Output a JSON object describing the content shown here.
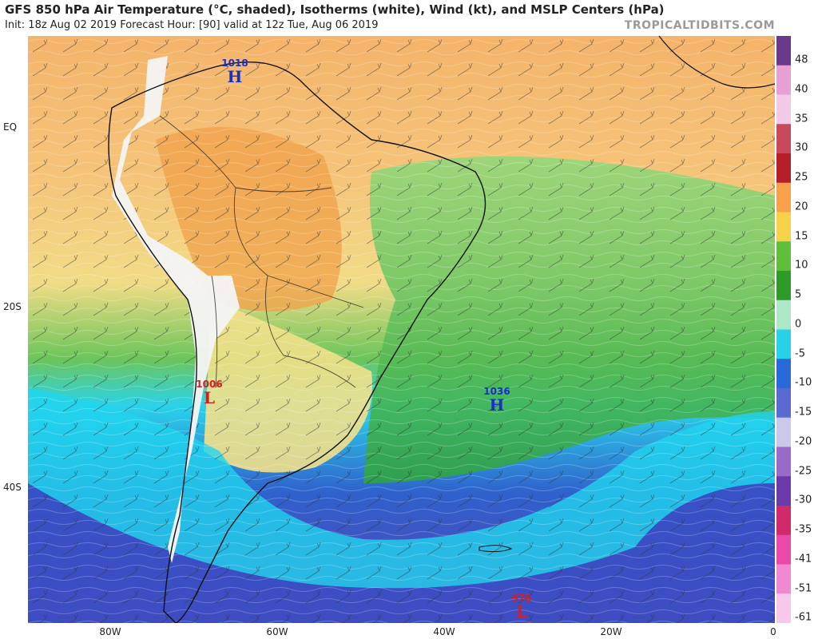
{
  "header": {
    "title": "GFS 850 hPa Air Temperature (°C, shaded), Isotherms (white), Wind (kt), and MSLP Centers (hPa)",
    "subtitle": "Init: 18z Aug 02 2019   Forecast Hour: [90]   valid at 12z Tue, Aug 06 2019",
    "brand": "TROPICALTIDBITS.COM"
  },
  "axes": {
    "lat_labels": [
      "EQ",
      "20S",
      "40S"
    ],
    "lon_labels": [
      "80W",
      "60W",
      "40W",
      "20W",
      "0"
    ]
  },
  "pressure_centers": [
    {
      "value": "1018",
      "letter": "H",
      "type": "high"
    },
    {
      "value": "1006",
      "letter": "L",
      "type": "low"
    },
    {
      "value": "1036",
      "letter": "H",
      "type": "high"
    },
    {
      "value": "976",
      "letter": "L",
      "type": "low"
    }
  ],
  "colorbar": {
    "labels": [
      "48",
      "40",
      "35",
      "30",
      "25",
      "20",
      "15",
      "10",
      "5",
      "0",
      "-5",
      "-10",
      "-15",
      "-20",
      "-25",
      "-30",
      "-35",
      "-41",
      "-51",
      "-61"
    ],
    "colors": [
      "#6a3a8a",
      "#e89fd4",
      "#f3c9ea",
      "#c84a5a",
      "#b51f2a",
      "#f7a24a",
      "#f5d24a",
      "#5fbf3a",
      "#2e9a2a",
      "#aee6c8",
      "#2ad0e8",
      "#2a6ad8",
      "#5a6ad0",
      "#c8c8e8",
      "#9a6ac8",
      "#6a3aa8",
      "#d02a6a",
      "#e84aa8",
      "#f08ad0",
      "#f8c8ec"
    ],
    "colors_meaning": "temperature scale colors top to bottom"
  },
  "colors": {
    "high": "#1a2fc8",
    "low": "#d42020",
    "warm": "#f2a652",
    "mild": "#f3df7a",
    "cool_green": "#54bb48",
    "cold_cyan": "#1ad9f0",
    "cold_blue": "#3356c9",
    "ocean_far_cold": "#5d4ab8"
  }
}
